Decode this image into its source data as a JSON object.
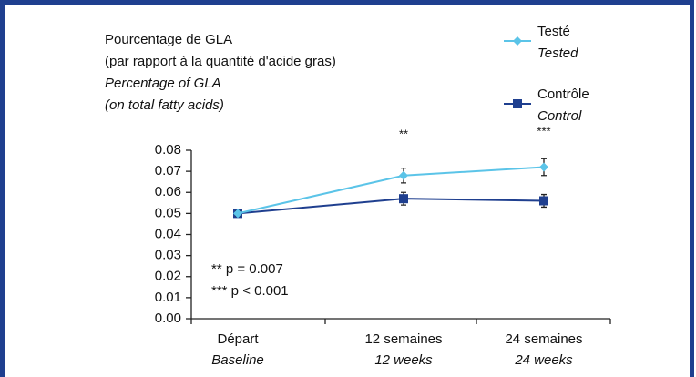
{
  "chart_data": {
    "type": "line",
    "ylabel": [
      "Pourcentage de GLA",
      "(par rapport à la quantité d'acide gras)",
      "Percentage of GLA",
      "(on total fatty acids)"
    ],
    "categories": [
      "Départ",
      "12 semaines",
      "24 semaines"
    ],
    "categories_en": [
      "Baseline",
      "12 weeks",
      "24 weeks"
    ],
    "series": [
      {
        "name": "Testé",
        "name_en": "Tested",
        "color": "#5bc4e8",
        "marker": "diamond",
        "values": [
          0.05,
          0.068,
          0.072
        ],
        "errors": [
          0.001,
          0.0035,
          0.004
        ]
      },
      {
        "name": "Contrôle",
        "name_en": "Control",
        "color": "#1f3f8f",
        "marker": "square",
        "values": [
          0.05,
          0.057,
          0.056
        ],
        "errors": [
          0.001,
          0.003,
          0.003
        ]
      }
    ],
    "significance": [
      "**",
      "***"
    ],
    "notes": [
      "** p = 0.007",
      "*** p < 0.001"
    ],
    "ylim": [
      0,
      0.08
    ],
    "yticks": [
      {
        "value": 0,
        "label": "0.00"
      },
      {
        "value": 0.01,
        "label": "0.01"
      },
      {
        "value": 0.02,
        "label": "0.02"
      },
      {
        "value": 0.03,
        "label": "0.03"
      },
      {
        "value": 0.04,
        "label": "0.04"
      },
      {
        "value": 0.05,
        "label": "0.05"
      },
      {
        "value": 0.06,
        "label": "0.06"
      },
      {
        "value": 0.07,
        "label": "0.07"
      },
      {
        "value": 0.08,
        "label": "0.08"
      }
    ],
    "grid": false
  }
}
